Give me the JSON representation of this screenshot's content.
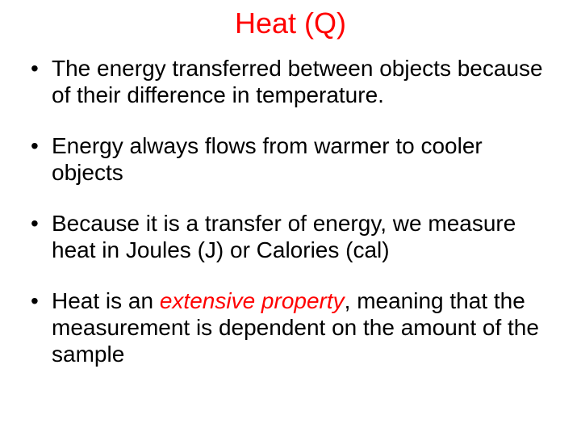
{
  "slide": {
    "background_color": "#ffffff",
    "title": {
      "text": "Heat (Q)",
      "color": "#ff0000",
      "fontsize": 36,
      "font_weight": 400,
      "align": "center"
    },
    "bullets": {
      "fontsize": 28,
      "color": "#000000",
      "marker": "•",
      "line_height": 1.18,
      "items": [
        {
          "segments": [
            {
              "text": "The energy transferred between objects because of their difference in temperature."
            }
          ]
        },
        {
          "segments": [
            {
              "text": "Energy always flows from warmer to cooler objects"
            }
          ]
        },
        {
          "segments": [
            {
              "text": "Because it is a transfer of energy, we measure heat in Joules (J) or Calories (cal)"
            }
          ]
        },
        {
          "segments": [
            {
              "text": "Heat is an "
            },
            {
              "text": "extensive property",
              "italic": true,
              "color": "#ff0000"
            },
            {
              "text": ", meaning that the measurement is dependent on the amount of the sample"
            }
          ]
        }
      ]
    }
  }
}
